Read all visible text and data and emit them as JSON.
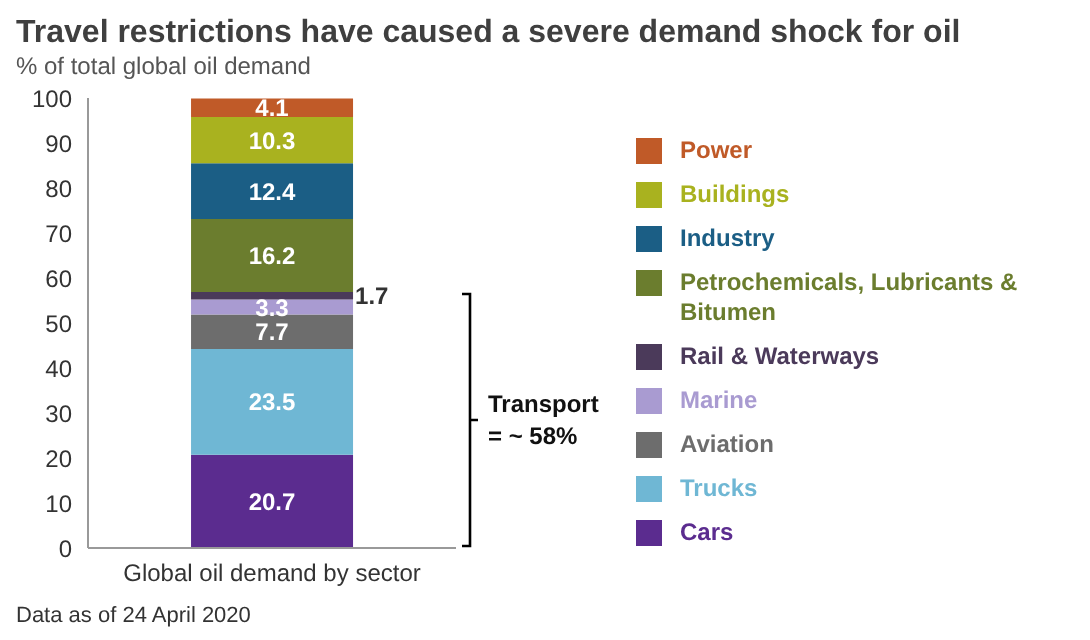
{
  "chart_data": {
    "type": "bar",
    "stacked": true,
    "title": "Travel restrictions have caused a severe demand shock for oil",
    "subtitle": "% of total global oil demand",
    "categories": [
      "Global oil demand by sector"
    ],
    "series": [
      {
        "name": "Cars",
        "color": "#5b2c8f",
        "values": [
          20.7
        ]
      },
      {
        "name": "Trucks",
        "color": "#6fb7d4",
        "values": [
          23.5
        ]
      },
      {
        "name": "Aviation",
        "color": "#6d6d6d",
        "values": [
          7.7
        ]
      },
      {
        "name": "Marine",
        "color": "#a99bd1",
        "values": [
          3.3
        ]
      },
      {
        "name": "Rail & Waterways",
        "color": "#4b3a5a",
        "values": [
          1.7
        ]
      },
      {
        "name": "Petrochemicals, Lubricants & Bitumen",
        "color": "#6b7d2e",
        "values": [
          16.2
        ]
      },
      {
        "name": "Industry",
        "color": "#1b5e85",
        "values": [
          12.4
        ]
      },
      {
        "name": "Buildings",
        "color": "#a9b21f",
        "values": [
          10.3
        ]
      },
      {
        "name": "Power",
        "color": "#c05a28",
        "values": [
          4.1
        ]
      }
    ],
    "ylim": [
      0,
      100
    ],
    "yticks": [
      0,
      10,
      20,
      30,
      40,
      50,
      60,
      70,
      80,
      90,
      100
    ],
    "legend": "right",
    "data_labels": true,
    "annotations": [
      "Transport\n= ~ 58%",
      "Data as of 24 April 2020"
    ]
  }
}
